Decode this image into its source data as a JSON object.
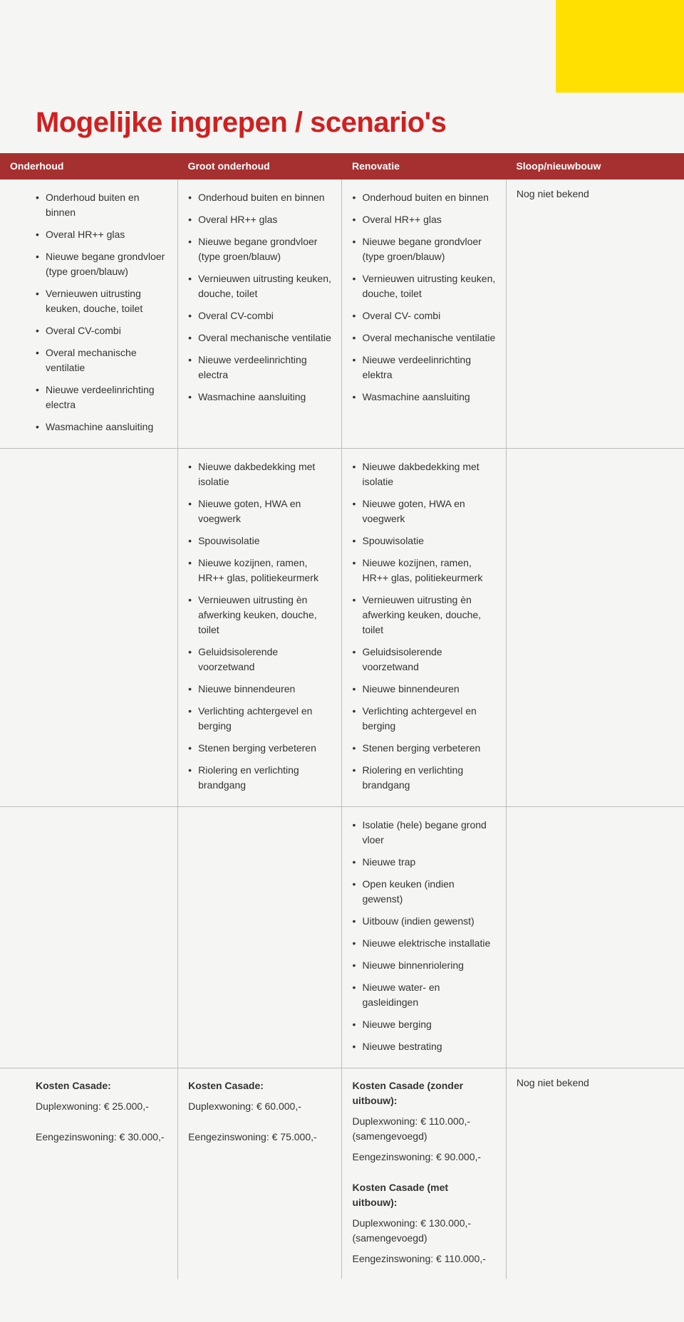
{
  "title": "Mogelijke ingrepen / scenario's",
  "headers": {
    "c1": "Onderhoud",
    "c2": "Groot onderhoud",
    "c3": "Renovatie",
    "c4": "Sloop/nieuwbouw"
  },
  "bullets_section1": {
    "c1": [
      "Onderhoud buiten en binnen",
      "Overal HR++ glas",
      "Nieuwe begane grondvloer (type groen/blauw)",
      "Vernieuwen uitrusting keuken, douche, toilet",
      "Overal CV-combi",
      "Overal mechanische ventilatie",
      "Nieuwe verdeelinrichting electra",
      "Wasmachine aansluiting"
    ],
    "c2": [
      "Onderhoud buiten en binnen",
      "Overal HR++ glas",
      "Nieuwe begane grondvloer (type groen/blauw)",
      "Vernieuwen uitrusting keuken, douche, toilet",
      "Overal CV-combi",
      "Overal mechanische ventilatie",
      "Nieuwe verdeelinrichting electra",
      "Wasmachine aansluiting"
    ],
    "c3": [
      "Onderhoud buiten en binnen",
      "Overal HR++ glas",
      "Nieuwe begane grondvloer (type groen/blauw)",
      "Vernieuwen uitrusting keuken, douche, toilet",
      "Overal CV- combi",
      "Overal mechanische ventilatie",
      "Nieuwe verdeelinrichting elektra",
      "Wasmachine aansluiting"
    ],
    "c4_text": "Nog niet bekend"
  },
  "bullets_section2": {
    "c2": [
      "Nieuwe dakbedekking met isolatie",
      "Nieuwe goten, HWA en voegwerk",
      "Spouwisolatie",
      "Nieuwe kozijnen, ramen, HR++ glas, politiekeurmerk",
      "Vernieuwen uitrusting èn afwerking keuken, douche, toilet",
      "Geluidsisolerende voorzetwand",
      "Nieuwe binnendeuren",
      "Verlichting achtergevel en berging",
      "Stenen berging verbeteren",
      "Riolering en verlichting brandgang"
    ],
    "c3": [
      "Nieuwe dakbedekking met isolatie",
      "Nieuwe goten, HWA en voegwerk",
      "Spouwisolatie",
      "Nieuwe kozijnen, ramen, HR++ glas, politiekeurmerk",
      "Vernieuwen uitrusting èn afwerking keuken, douche, toilet",
      "Geluidsisolerende voorzetwand",
      "Nieuwe binnendeuren",
      "Verlichting achtergevel en berging",
      "Stenen berging verbeteren",
      "Riolering en verlichting brandgang"
    ]
  },
  "bullets_section3": {
    "c3": [
      "Isolatie (hele) begane grond vloer",
      "Nieuwe trap",
      "Open keuken (indien gewenst)",
      "Uitbouw (indien gewenst)",
      "Nieuwe elektrische installatie",
      "Nieuwe binnenriolering",
      "Nieuwe water- en gasleidingen",
      "Nieuwe berging",
      "Nieuwe bestrating"
    ]
  },
  "costs": {
    "c1": {
      "title": "Kosten Casade:",
      "lines": [
        "Duplexwoning: € 25.000,-",
        "",
        "Eengezinswoning: € 30.000,-"
      ]
    },
    "c2": {
      "title": "Kosten Casade:",
      "lines": [
        "Duplexwoning: € 60.000,-",
        "",
        "Eengezinswoning: € 75.000,-"
      ]
    },
    "c3": {
      "title1": "Kosten Casade (zonder uitbouw):",
      "lines1": [
        "Duplexwoning: € 110.000,- (samengevoegd)",
        "Eengezinswoning: € 90.000,-"
      ],
      "title2": "Kosten Casade (met uitbouw):",
      "lines2": [
        "Duplexwoning: € 130.000,- (samengevoegd)",
        "Eengezinswoning: € 110.000,-"
      ]
    },
    "c4_text": "Nog niet bekend"
  },
  "colors": {
    "accent_red": "#d02020",
    "header_bg": "#a63030",
    "page_bg": "#f5f5f3",
    "yellow_block": "#ffe000",
    "rule": "#bdbdbd"
  },
  "col_widths_pct": [
    26,
    24,
    24,
    26
  ]
}
